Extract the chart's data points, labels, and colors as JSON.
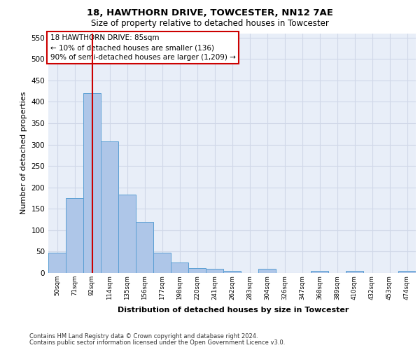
{
  "title1": "18, HAWTHORN DRIVE, TOWCESTER, NN12 7AE",
  "title2": "Size of property relative to detached houses in Towcester",
  "xlabel": "Distribution of detached houses by size in Towcester",
  "ylabel": "Number of detached properties",
  "bar_labels": [
    "50sqm",
    "71sqm",
    "92sqm",
    "114sqm",
    "135sqm",
    "156sqm",
    "177sqm",
    "198sqm",
    "220sqm",
    "241sqm",
    "262sqm",
    "283sqm",
    "304sqm",
    "326sqm",
    "347sqm",
    "368sqm",
    "389sqm",
    "410sqm",
    "432sqm",
    "453sqm",
    "474sqm"
  ],
  "bar_values": [
    47,
    175,
    420,
    308,
    183,
    120,
    47,
    25,
    12,
    10,
    5,
    0,
    10,
    0,
    0,
    5,
    0,
    5,
    0,
    0,
    5
  ],
  "bar_color": "#aec6e8",
  "bar_edge_color": "#5a9fd4",
  "vline_x_index": 2,
  "vline_color": "#cc0000",
  "annotation_text": "18 HAWTHORN DRIVE: 85sqm\n← 10% of detached houses are smaller (136)\n90% of semi-detached houses are larger (1,209) →",
  "annotation_box_color": "#ffffff",
  "annotation_box_edge": "#cc0000",
  "ylim": [
    0,
    560
  ],
  "yticks": [
    0,
    50,
    100,
    150,
    200,
    250,
    300,
    350,
    400,
    450,
    500,
    550
  ],
  "grid_color": "#d0d8e8",
  "bg_color": "#e8eef8",
  "footer1": "Contains HM Land Registry data © Crown copyright and database right 2024.",
  "footer2": "Contains public sector information licensed under the Open Government Licence v3.0."
}
